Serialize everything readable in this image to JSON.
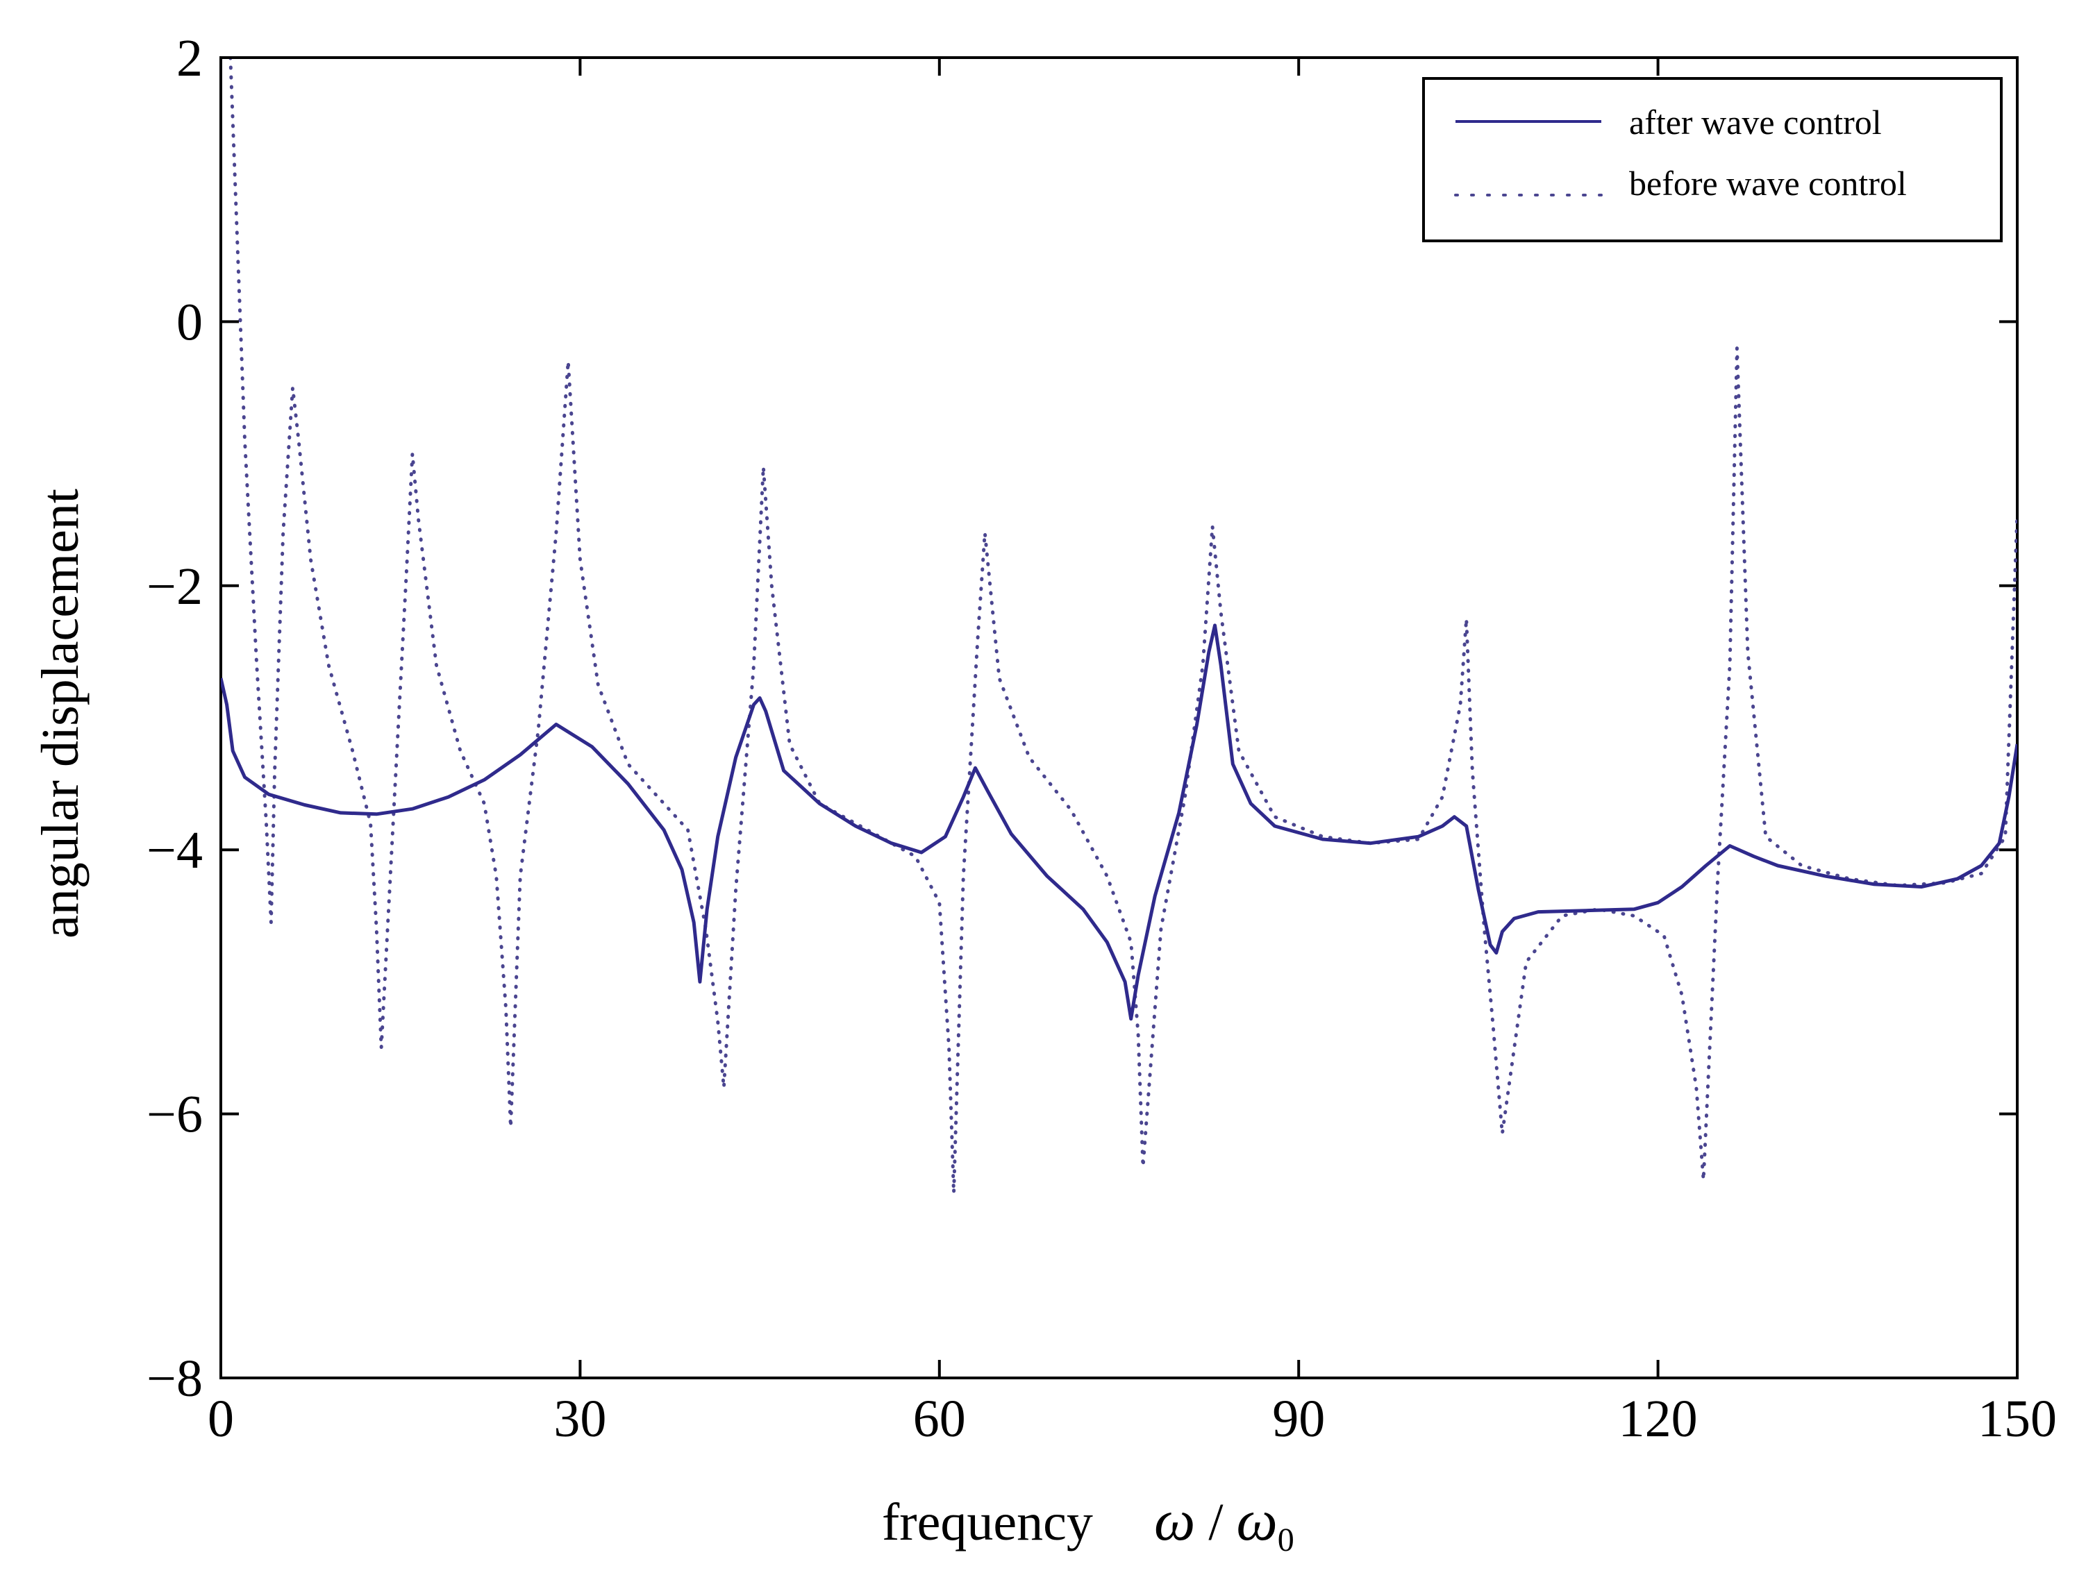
{
  "chart_data": {
    "type": "line",
    "title": "",
    "xlabel": "frequency",
    "xlabel_math": {
      "omega": "ω",
      "slash": " / ",
      "omega0": "ω",
      "sub": "0"
    },
    "ylabel": "angular displacement",
    "xlim": [
      0,
      150
    ],
    "ylim": [
      -8,
      2
    ],
    "x_ticks": [
      0,
      30,
      60,
      90,
      120,
      150
    ],
    "x_tick_labels": [
      "0",
      "30",
      "60",
      "90",
      "120",
      "150"
    ],
    "y_ticks": [
      2,
      0,
      -2,
      -4,
      -6,
      -8
    ],
    "y_tick_labels": [
      "2",
      "0",
      "−2",
      "−4",
      "−6",
      "−8"
    ],
    "grid": false,
    "legend_position": "top-right",
    "series": [
      {
        "name": "after wave control",
        "style": "solid",
        "color": "#2f2a8c",
        "x": [
          0,
          0.5,
          1,
          2,
          4,
          7,
          10,
          13,
          16,
          19,
          22,
          25,
          28,
          31,
          34,
          37,
          38.5,
          39.5,
          40,
          40.6,
          41.5,
          43,
          44.5,
          45,
          45.5,
          47,
          50,
          53,
          56,
          58.5,
          60.5,
          62,
          63,
          64,
          66,
          69,
          72,
          74,
          75.5,
          76,
          76.6,
          78,
          80,
          81.5,
          82.5,
          83,
          83.5,
          84.5,
          86,
          88,
          92,
          96,
          100,
          102,
          103,
          104,
          105,
          106,
          106.5,
          107,
          108,
          110,
          114,
          118,
          120,
          122,
          124,
          126,
          128,
          130,
          134,
          138,
          142,
          145,
          147,
          148.5,
          149.3,
          150
        ],
        "y": [
          -2.7,
          -2.9,
          -3.25,
          -3.45,
          -3.58,
          -3.66,
          -3.72,
          -3.73,
          -3.69,
          -3.6,
          -3.47,
          -3.28,
          -3.05,
          -3.22,
          -3.5,
          -3.85,
          -4.15,
          -4.55,
          -5.0,
          -4.45,
          -3.9,
          -3.3,
          -2.9,
          -2.85,
          -2.95,
          -3.4,
          -3.65,
          -3.82,
          -3.95,
          -4.02,
          -3.9,
          -3.6,
          -3.38,
          -3.55,
          -3.88,
          -4.2,
          -4.45,
          -4.7,
          -5.0,
          -5.28,
          -4.95,
          -4.35,
          -3.72,
          -3.05,
          -2.5,
          -2.3,
          -2.6,
          -3.35,
          -3.65,
          -3.82,
          -3.92,
          -3.95,
          -3.9,
          -3.82,
          -3.75,
          -3.82,
          -4.3,
          -4.72,
          -4.78,
          -4.62,
          -4.52,
          -4.47,
          -4.46,
          -4.45,
          -4.4,
          -4.28,
          -4.12,
          -3.97,
          -4.05,
          -4.12,
          -4.2,
          -4.26,
          -4.28,
          -4.22,
          -4.12,
          -3.95,
          -3.6,
          -3.2
        ]
      },
      {
        "name": "before wave control",
        "style": "dotted",
        "color": "#4a4590",
        "x": [
          0.8,
          1.3,
          2,
          3,
          3.8,
          4.2,
          4.5,
          5.2,
          6,
          6.5,
          7.5,
          9,
          11,
          12.5,
          13,
          13.4,
          14.5,
          15.5,
          16,
          16.5,
          18,
          20,
          22,
          23,
          23.8,
          24.2,
          25,
          26.5,
          28,
          29,
          30,
          31.5,
          34,
          37,
          39,
          40.5,
          41.5,
          42,
          43,
          44.5,
          45.3,
          46,
          47.5,
          50,
          54,
          58,
          60,
          60.8,
          61.2,
          62,
          63.2,
          63.8,
          65,
          67.5,
          71,
          74,
          76,
          76.6,
          77,
          78.5,
          80.5,
          82,
          82.8,
          83.5,
          85,
          88,
          92,
          96,
          100,
          102,
          103.5,
          104,
          104.5,
          105.5,
          106.2,
          107,
          109,
          112,
          115,
          118,
          120.5,
          122,
          123.2,
          123.8,
          125,
          126,
          126.6,
          127.5,
          129,
          132,
          136,
          140,
          144,
          147,
          149,
          150
        ],
        "y": [
          2.0,
          0.8,
          -0.9,
          -2.6,
          -3.8,
          -4.55,
          -3.4,
          -1.6,
          -0.5,
          -0.9,
          -1.8,
          -2.6,
          -3.25,
          -3.8,
          -4.6,
          -5.5,
          -3.6,
          -1.9,
          -1.0,
          -1.5,
          -2.6,
          -3.25,
          -3.65,
          -4.2,
          -5.2,
          -6.1,
          -4.2,
          -3.1,
          -1.6,
          -0.3,
          -1.8,
          -2.75,
          -3.35,
          -3.65,
          -3.85,
          -4.6,
          -5.3,
          -5.8,
          -4.3,
          -2.6,
          -1.1,
          -2.0,
          -3.2,
          -3.65,
          -3.85,
          -4.05,
          -4.4,
          -5.5,
          -6.6,
          -4.2,
          -2.4,
          -1.6,
          -2.7,
          -3.3,
          -3.7,
          -4.2,
          -4.7,
          -5.4,
          -6.4,
          -4.6,
          -3.6,
          -2.6,
          -1.55,
          -2.2,
          -3.25,
          -3.75,
          -3.9,
          -3.95,
          -3.92,
          -3.6,
          -2.9,
          -2.25,
          -3.4,
          -4.6,
          -5.3,
          -6.15,
          -4.85,
          -4.5,
          -4.45,
          -4.5,
          -4.65,
          -5.1,
          -5.8,
          -6.5,
          -4.2,
          -2.6,
          -0.2,
          -2.5,
          -3.9,
          -4.12,
          -4.22,
          -4.27,
          -4.25,
          -4.18,
          -3.9,
          -1.45
        ]
      }
    ]
  }
}
